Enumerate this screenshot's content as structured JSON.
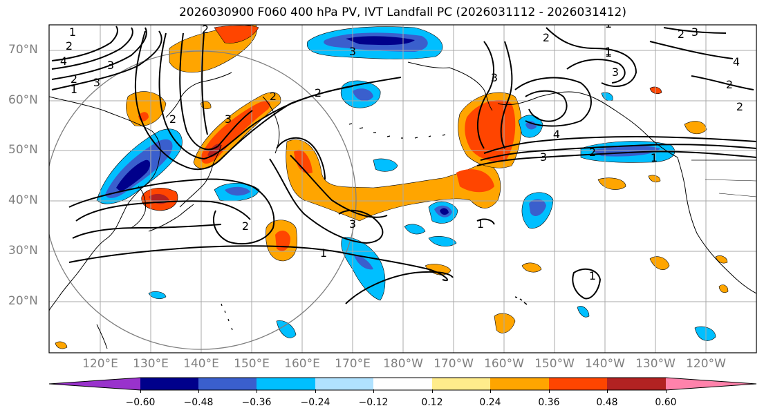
{
  "title": "2026030900 F060 400 hPa PV, IVT Landfall PC (2026031112 - 2026031412)",
  "axes": {
    "lat_labels": [
      "70°N",
      "60°N",
      "50°N",
      "40°N",
      "30°N",
      "20°N"
    ],
    "lon_labels": [
      "120°E",
      "130°E",
      "140°E",
      "150°E",
      "160°E",
      "170°E",
      "180°W",
      "170°W",
      "160°W",
      "150°W",
      "140°W",
      "130°W",
      "120°W"
    ]
  },
  "colorbar": {
    "colors": [
      "#9932cc",
      "#00008b",
      "#3a5fcd",
      "#00bfff",
      "#b0e2ff",
      "#ffffff",
      "#ffec8b",
      "#ffa500",
      "#ff4500",
      "#b22222",
      "#ff82ab"
    ],
    "tick_labels": [
      "−0.60",
      "−0.48",
      "−0.36",
      "−0.24",
      "−0.12",
      "0.12",
      "0.24",
      "0.36",
      "0.48",
      "0.60"
    ]
  },
  "contour_labels": [
    "1",
    "2",
    "3",
    "4",
    "2",
    "3",
    "2",
    "2",
    "3",
    "2",
    "2",
    "1",
    "3",
    "3",
    "2",
    "1",
    "3",
    "1",
    "2",
    "4",
    "3",
    "2",
    "1",
    "1",
    "1",
    "3",
    "2",
    "2",
    "4",
    "3",
    "1",
    "2",
    "1"
  ]
}
